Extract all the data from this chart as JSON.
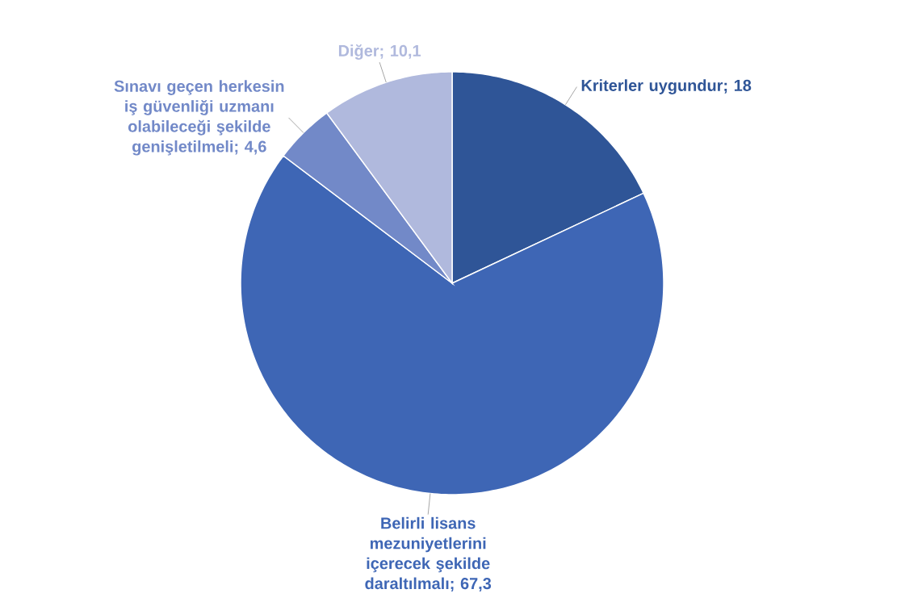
{
  "chart_data": {
    "type": "pie",
    "categories": [
      "Kriterler uygundur",
      "Belirli lisans mezuniyetlerini içerecek şekilde daraltılmalı",
      "Sınavı geçen herkesin iş güvenliği uzmanı olabileceği şekilde genişletilmeli",
      "Diğer"
    ],
    "values": [
      18,
      67.3,
      4.6,
      10.1
    ],
    "value_labels": [
      "; 18",
      "; 67,3",
      "; 4,6",
      "; 10,1"
    ],
    "colors": [
      "#2f5597",
      "#3e66b5",
      "#7289c8",
      "#b0b9dd"
    ]
  }
}
